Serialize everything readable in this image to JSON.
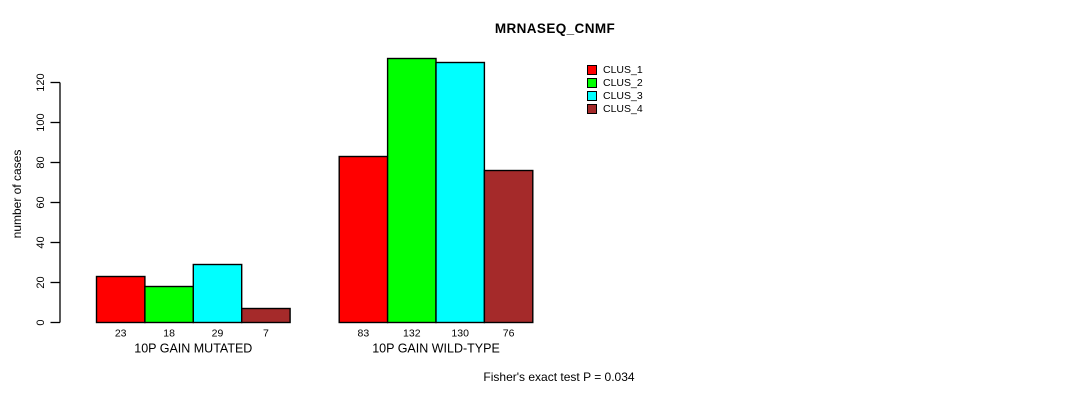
{
  "chart_data": {
    "type": "bar",
    "title": "MRNASEQ_CNMF",
    "xlabel": "",
    "ylabel": "number of cases",
    "categories": [
      "10P GAIN MUTATED",
      "10P GAIN WILD-TYPE"
    ],
    "series": [
      {
        "name": "CLUS_1",
        "color": "#FF0000",
        "values": [
          23,
          83
        ]
      },
      {
        "name": "CLUS_2",
        "color": "#00FF00",
        "values": [
          18,
          132
        ]
      },
      {
        "name": "CLUS_3",
        "color": "#00FFFF",
        "values": [
          29,
          130
        ]
      },
      {
        "name": "CLUS_4",
        "color": "#A52A2A",
        "values": [
          7,
          76
        ]
      }
    ],
    "bar_value_labels_shown": true,
    "yticks": [
      0,
      20,
      40,
      60,
      80,
      100,
      120
    ],
    "ylim": [
      0,
      132
    ],
    "grid": false,
    "legend_position": "top-right",
    "annotation": "Fisher's exact test P = 0.034"
  },
  "colors": {
    "background": "#FFFFFF",
    "axis": "#000000",
    "text": "#000000",
    "bar_border": "#000000"
  }
}
